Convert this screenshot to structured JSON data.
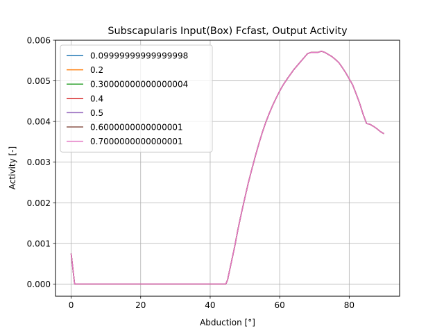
{
  "chart_data": {
    "type": "line",
    "title": "Subscapularis Input(Box) Fcfast, Output Activity",
    "xlabel": "Abduction [°]",
    "ylabel": "Activity [-]",
    "xlim": [
      -4.5,
      94.5
    ],
    "ylim": [
      -0.0003,
      0.006
    ],
    "xticks": [
      0,
      20,
      40,
      60,
      80
    ],
    "xtick_labels": [
      "0",
      "20",
      "40",
      "60",
      "80"
    ],
    "yticks": [
      0.0,
      0.001,
      0.002,
      0.003,
      0.004,
      0.005,
      0.006
    ],
    "ytick_labels": [
      "0.000",
      "0.001",
      "0.002",
      "0.003",
      "0.004",
      "0.005",
      "0.006"
    ],
    "grid": true,
    "legend_position": "top-left",
    "x": [
      0,
      1,
      2,
      5,
      10,
      20,
      30,
      40,
      44.5,
      45,
      46,
      47,
      48,
      49,
      50,
      51,
      52,
      53,
      54,
      55,
      56,
      57,
      58,
      59,
      60,
      61,
      62,
      63,
      64,
      65,
      66,
      67,
      68,
      69,
      70,
      71,
      72,
      73,
      74,
      75,
      76,
      77,
      78,
      79,
      80,
      81,
      82,
      83,
      84,
      85,
      86,
      87,
      88,
      89,
      90
    ],
    "series": [
      {
        "name": "0.09999999999999998",
        "color": "#1f77b4",
        "values": [
          0.00075,
          0.0,
          0.0,
          0.0,
          0.0,
          0.0,
          0.0,
          0.0,
          0.0,
          0.0001,
          0.0005,
          0.0009,
          0.00135,
          0.00175,
          0.00213,
          0.0025,
          0.00283,
          0.00315,
          0.00345,
          0.00373,
          0.00398,
          0.0042,
          0.0044,
          0.00458,
          0.00475,
          0.0049,
          0.00503,
          0.00515,
          0.00527,
          0.00537,
          0.00547,
          0.00557,
          0.00567,
          0.0057,
          0.0057,
          0.0057,
          0.00573,
          0.0057,
          0.00565,
          0.0056,
          0.00553,
          0.00545,
          0.00533,
          0.0052,
          0.00505,
          0.0049,
          0.00468,
          0.00445,
          0.00418,
          0.00395,
          0.00393,
          0.00388,
          0.00382,
          0.00375,
          0.0037
        ]
      },
      {
        "name": "0.2",
        "color": "#ff7f0e",
        "values": [
          0.00075,
          0.0,
          0.0,
          0.0,
          0.0,
          0.0,
          0.0,
          0.0,
          0.0,
          0.0001,
          0.0005,
          0.0009,
          0.00135,
          0.00175,
          0.00213,
          0.0025,
          0.00283,
          0.00315,
          0.00345,
          0.00373,
          0.00398,
          0.0042,
          0.0044,
          0.00458,
          0.00475,
          0.0049,
          0.00503,
          0.00515,
          0.00527,
          0.00537,
          0.00547,
          0.00557,
          0.00567,
          0.0057,
          0.0057,
          0.0057,
          0.00573,
          0.0057,
          0.00565,
          0.0056,
          0.00553,
          0.00545,
          0.00533,
          0.0052,
          0.00505,
          0.0049,
          0.00468,
          0.00445,
          0.00418,
          0.00395,
          0.00393,
          0.00388,
          0.00382,
          0.00375,
          0.0037
        ]
      },
      {
        "name": "0.30000000000000004",
        "color": "#2ca02c",
        "values": [
          0.00075,
          0.0,
          0.0,
          0.0,
          0.0,
          0.0,
          0.0,
          0.0,
          0.0,
          0.0001,
          0.0005,
          0.0009,
          0.00135,
          0.00175,
          0.00213,
          0.0025,
          0.00283,
          0.00315,
          0.00345,
          0.00373,
          0.00398,
          0.0042,
          0.0044,
          0.00458,
          0.00475,
          0.0049,
          0.00503,
          0.00515,
          0.00527,
          0.00537,
          0.00547,
          0.00557,
          0.00567,
          0.0057,
          0.0057,
          0.0057,
          0.00573,
          0.0057,
          0.00565,
          0.0056,
          0.00553,
          0.00545,
          0.00533,
          0.0052,
          0.00505,
          0.0049,
          0.00468,
          0.00445,
          0.00418,
          0.00395,
          0.00393,
          0.00388,
          0.00382,
          0.00375,
          0.0037
        ]
      },
      {
        "name": "0.4",
        "color": "#d62728",
        "values": [
          0.00075,
          0.0,
          0.0,
          0.0,
          0.0,
          0.0,
          0.0,
          0.0,
          0.0,
          0.0001,
          0.0005,
          0.0009,
          0.00135,
          0.00175,
          0.00213,
          0.0025,
          0.00283,
          0.00315,
          0.00345,
          0.00373,
          0.00398,
          0.0042,
          0.0044,
          0.00458,
          0.00475,
          0.0049,
          0.00503,
          0.00515,
          0.00527,
          0.00537,
          0.00547,
          0.00557,
          0.00567,
          0.0057,
          0.0057,
          0.0057,
          0.00573,
          0.0057,
          0.00565,
          0.0056,
          0.00553,
          0.00545,
          0.00533,
          0.0052,
          0.00505,
          0.0049,
          0.00468,
          0.00445,
          0.00418,
          0.00395,
          0.00393,
          0.00388,
          0.00382,
          0.00375,
          0.0037
        ]
      },
      {
        "name": "0.5",
        "color": "#9467bd",
        "values": [
          0.00075,
          0.0,
          0.0,
          0.0,
          0.0,
          0.0,
          0.0,
          0.0,
          0.0,
          0.0001,
          0.0005,
          0.0009,
          0.00135,
          0.00175,
          0.00213,
          0.0025,
          0.00283,
          0.00315,
          0.00345,
          0.00373,
          0.00398,
          0.0042,
          0.0044,
          0.00458,
          0.00475,
          0.0049,
          0.00503,
          0.00515,
          0.00527,
          0.00537,
          0.00547,
          0.00557,
          0.00567,
          0.0057,
          0.0057,
          0.0057,
          0.00573,
          0.0057,
          0.00565,
          0.0056,
          0.00553,
          0.00545,
          0.00533,
          0.0052,
          0.00505,
          0.0049,
          0.00468,
          0.00445,
          0.00418,
          0.00395,
          0.00393,
          0.00388,
          0.00382,
          0.00375,
          0.0037
        ]
      },
      {
        "name": "0.6000000000000001",
        "color": "#8c564b",
        "values": [
          0.00075,
          0.0,
          0.0,
          0.0,
          0.0,
          0.0,
          0.0,
          0.0,
          0.0,
          0.0001,
          0.0005,
          0.0009,
          0.00135,
          0.00175,
          0.00213,
          0.0025,
          0.00283,
          0.00315,
          0.00345,
          0.00373,
          0.00398,
          0.0042,
          0.0044,
          0.00458,
          0.00475,
          0.0049,
          0.00503,
          0.00515,
          0.00527,
          0.00537,
          0.00547,
          0.00557,
          0.00567,
          0.0057,
          0.0057,
          0.0057,
          0.00573,
          0.0057,
          0.00565,
          0.0056,
          0.00553,
          0.00545,
          0.00533,
          0.0052,
          0.00505,
          0.0049,
          0.00468,
          0.00445,
          0.00418,
          0.00395,
          0.00393,
          0.00388,
          0.00382,
          0.00375,
          0.0037
        ]
      },
      {
        "name": "0.7000000000000001",
        "color": "#e377c2",
        "values": [
          0.00075,
          0.0,
          0.0,
          0.0,
          0.0,
          0.0,
          0.0,
          0.0,
          0.0,
          0.0001,
          0.0005,
          0.0009,
          0.00135,
          0.00175,
          0.00213,
          0.0025,
          0.00283,
          0.00315,
          0.00345,
          0.00373,
          0.00398,
          0.0042,
          0.0044,
          0.00458,
          0.00475,
          0.0049,
          0.00503,
          0.00515,
          0.00527,
          0.00537,
          0.00547,
          0.00557,
          0.00567,
          0.0057,
          0.0057,
          0.0057,
          0.00573,
          0.0057,
          0.00565,
          0.0056,
          0.00553,
          0.00545,
          0.00533,
          0.0052,
          0.00505,
          0.0049,
          0.00468,
          0.00445,
          0.00418,
          0.00395,
          0.00393,
          0.00388,
          0.00382,
          0.00375,
          0.0037
        ]
      }
    ]
  }
}
